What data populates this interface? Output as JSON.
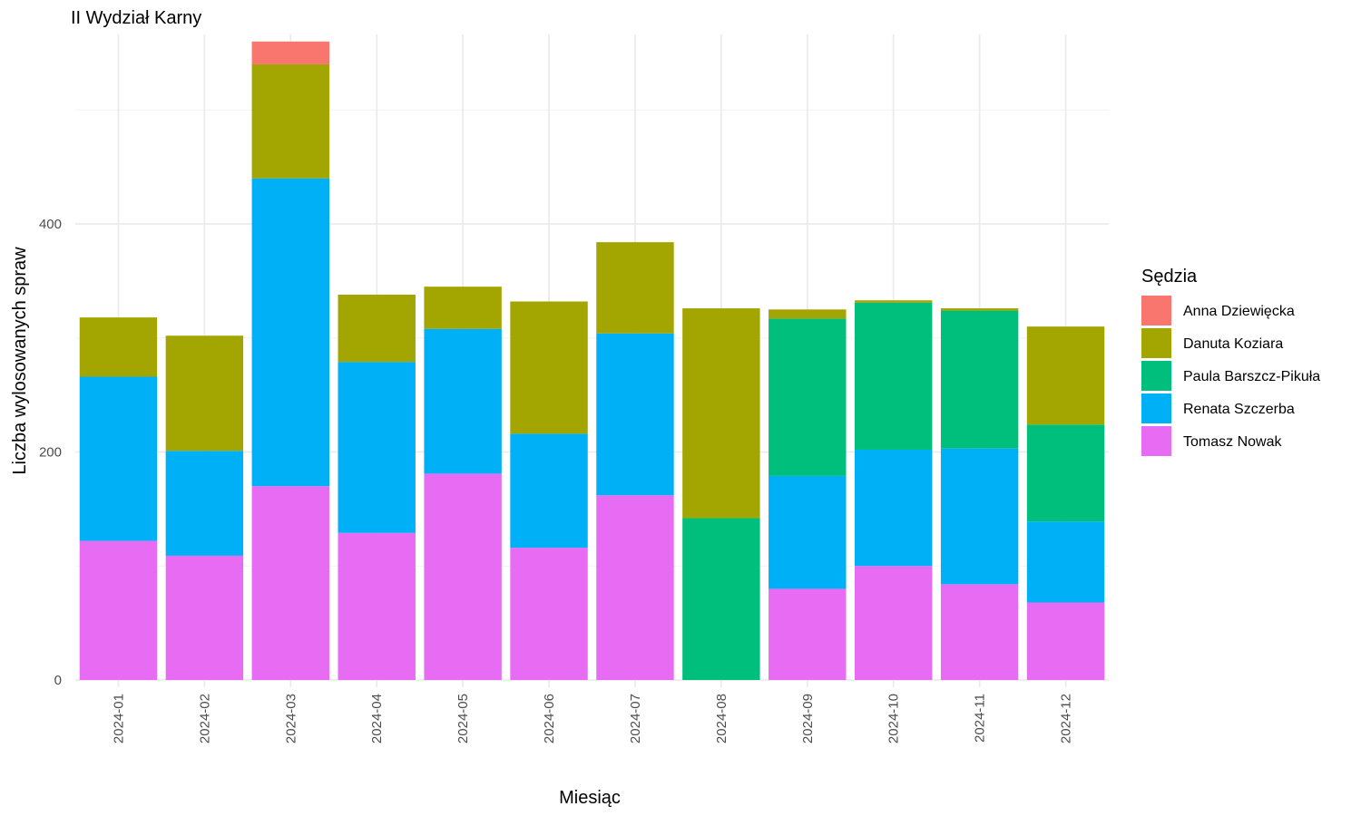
{
  "chart_data": {
    "type": "bar",
    "stacked": true,
    "title": "II Wydział Karny",
    "xlabel": "Miesiąc",
    "ylabel": "Liczba wylosowanych spraw",
    "ylim": [
      0,
      560
    ],
    "yticks": [
      0,
      200,
      400
    ],
    "grid": true,
    "legend_title": "Sędzia",
    "legend_position": "right",
    "categories": [
      "2024-01",
      "2024-02",
      "2024-03",
      "2024-04",
      "2024-05",
      "2024-06",
      "2024-07",
      "2024-08",
      "2024-09",
      "2024-10",
      "2024-11",
      "2024-12"
    ],
    "series": [
      {
        "name": "Tomasz Nowak",
        "color": "#E76BF3",
        "values": [
          122,
          109,
          170,
          129,
          181,
          116,
          162,
          0,
          80,
          100,
          84,
          68
        ]
      },
      {
        "name": "Renata Szczerba",
        "color": "#00B0F6",
        "values": [
          144,
          92,
          270,
          150,
          127,
          100,
          142,
          0,
          99,
          102,
          119,
          71
        ]
      },
      {
        "name": "Paula Barszcz-Pikuła",
        "color": "#00BF7D",
        "values": [
          0,
          0,
          0,
          0,
          0,
          0,
          0,
          142,
          138,
          129,
          121,
          85
        ]
      },
      {
        "name": "Danuta Koziara",
        "color": "#A3A500",
        "values": [
          52,
          101,
          100,
          59,
          37,
          116,
          80,
          184,
          8,
          2,
          2,
          86
        ]
      },
      {
        "name": "Anna Dziewięcka",
        "color": "#F8766D",
        "values": [
          0,
          0,
          20,
          0,
          0,
          0,
          0,
          0,
          0,
          0,
          0,
          0
        ]
      }
    ]
  }
}
